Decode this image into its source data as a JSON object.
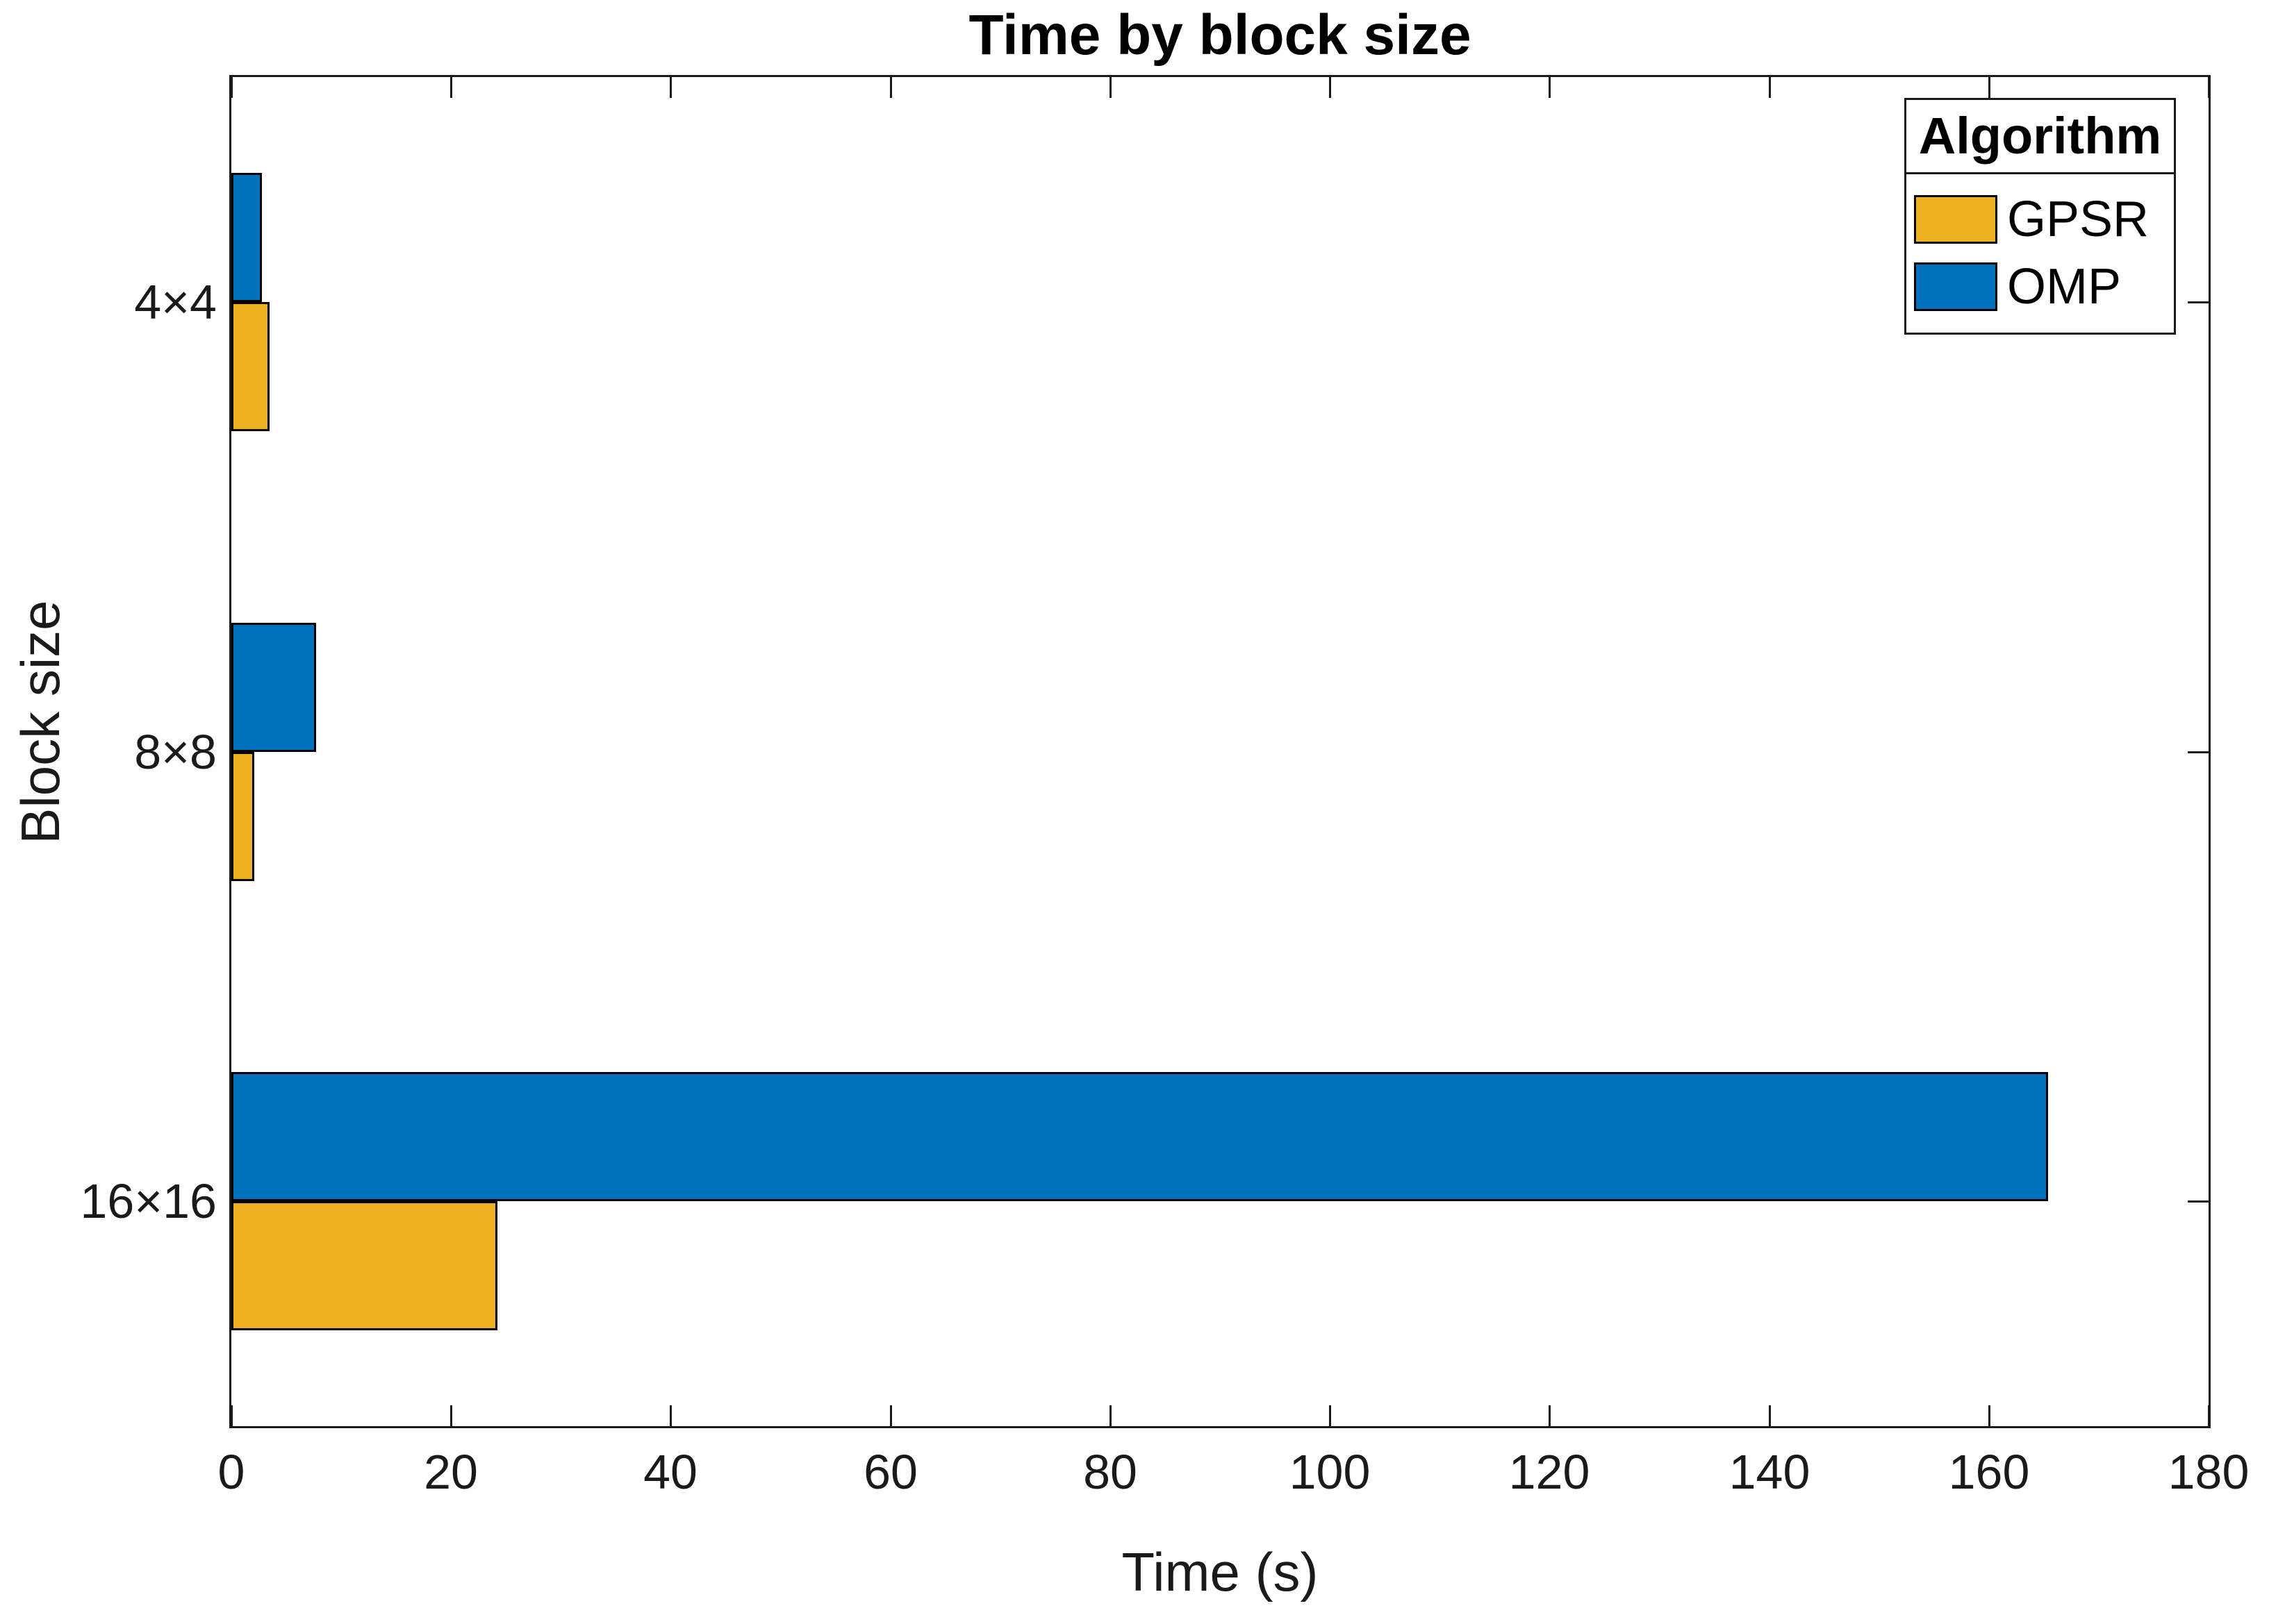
{
  "title": "Time by block size",
  "chart_data": {
    "type": "bar",
    "orientation": "horizontal",
    "title": "Time by block size",
    "xlabel": "Time (s)",
    "ylabel": "Block size",
    "categories": [
      "4×4",
      "8×8",
      "16×16"
    ],
    "series": [
      {
        "name": "GPSR",
        "color": "#EDB120",
        "values": [
          3.5,
          2.1,
          24.2
        ]
      },
      {
        "name": "OMP",
        "color": "#0072BD",
        "values": [
          2.8,
          7.7,
          165.4
        ]
      }
    ],
    "xlim": [
      0,
      180
    ],
    "x_ticks": [
      0,
      20,
      40,
      60,
      80,
      100,
      120,
      140,
      160,
      180
    ],
    "grid": false,
    "legend": {
      "title": "Algorithm",
      "position": "top-right",
      "entries": [
        "GPSR",
        "OMP"
      ]
    }
  }
}
